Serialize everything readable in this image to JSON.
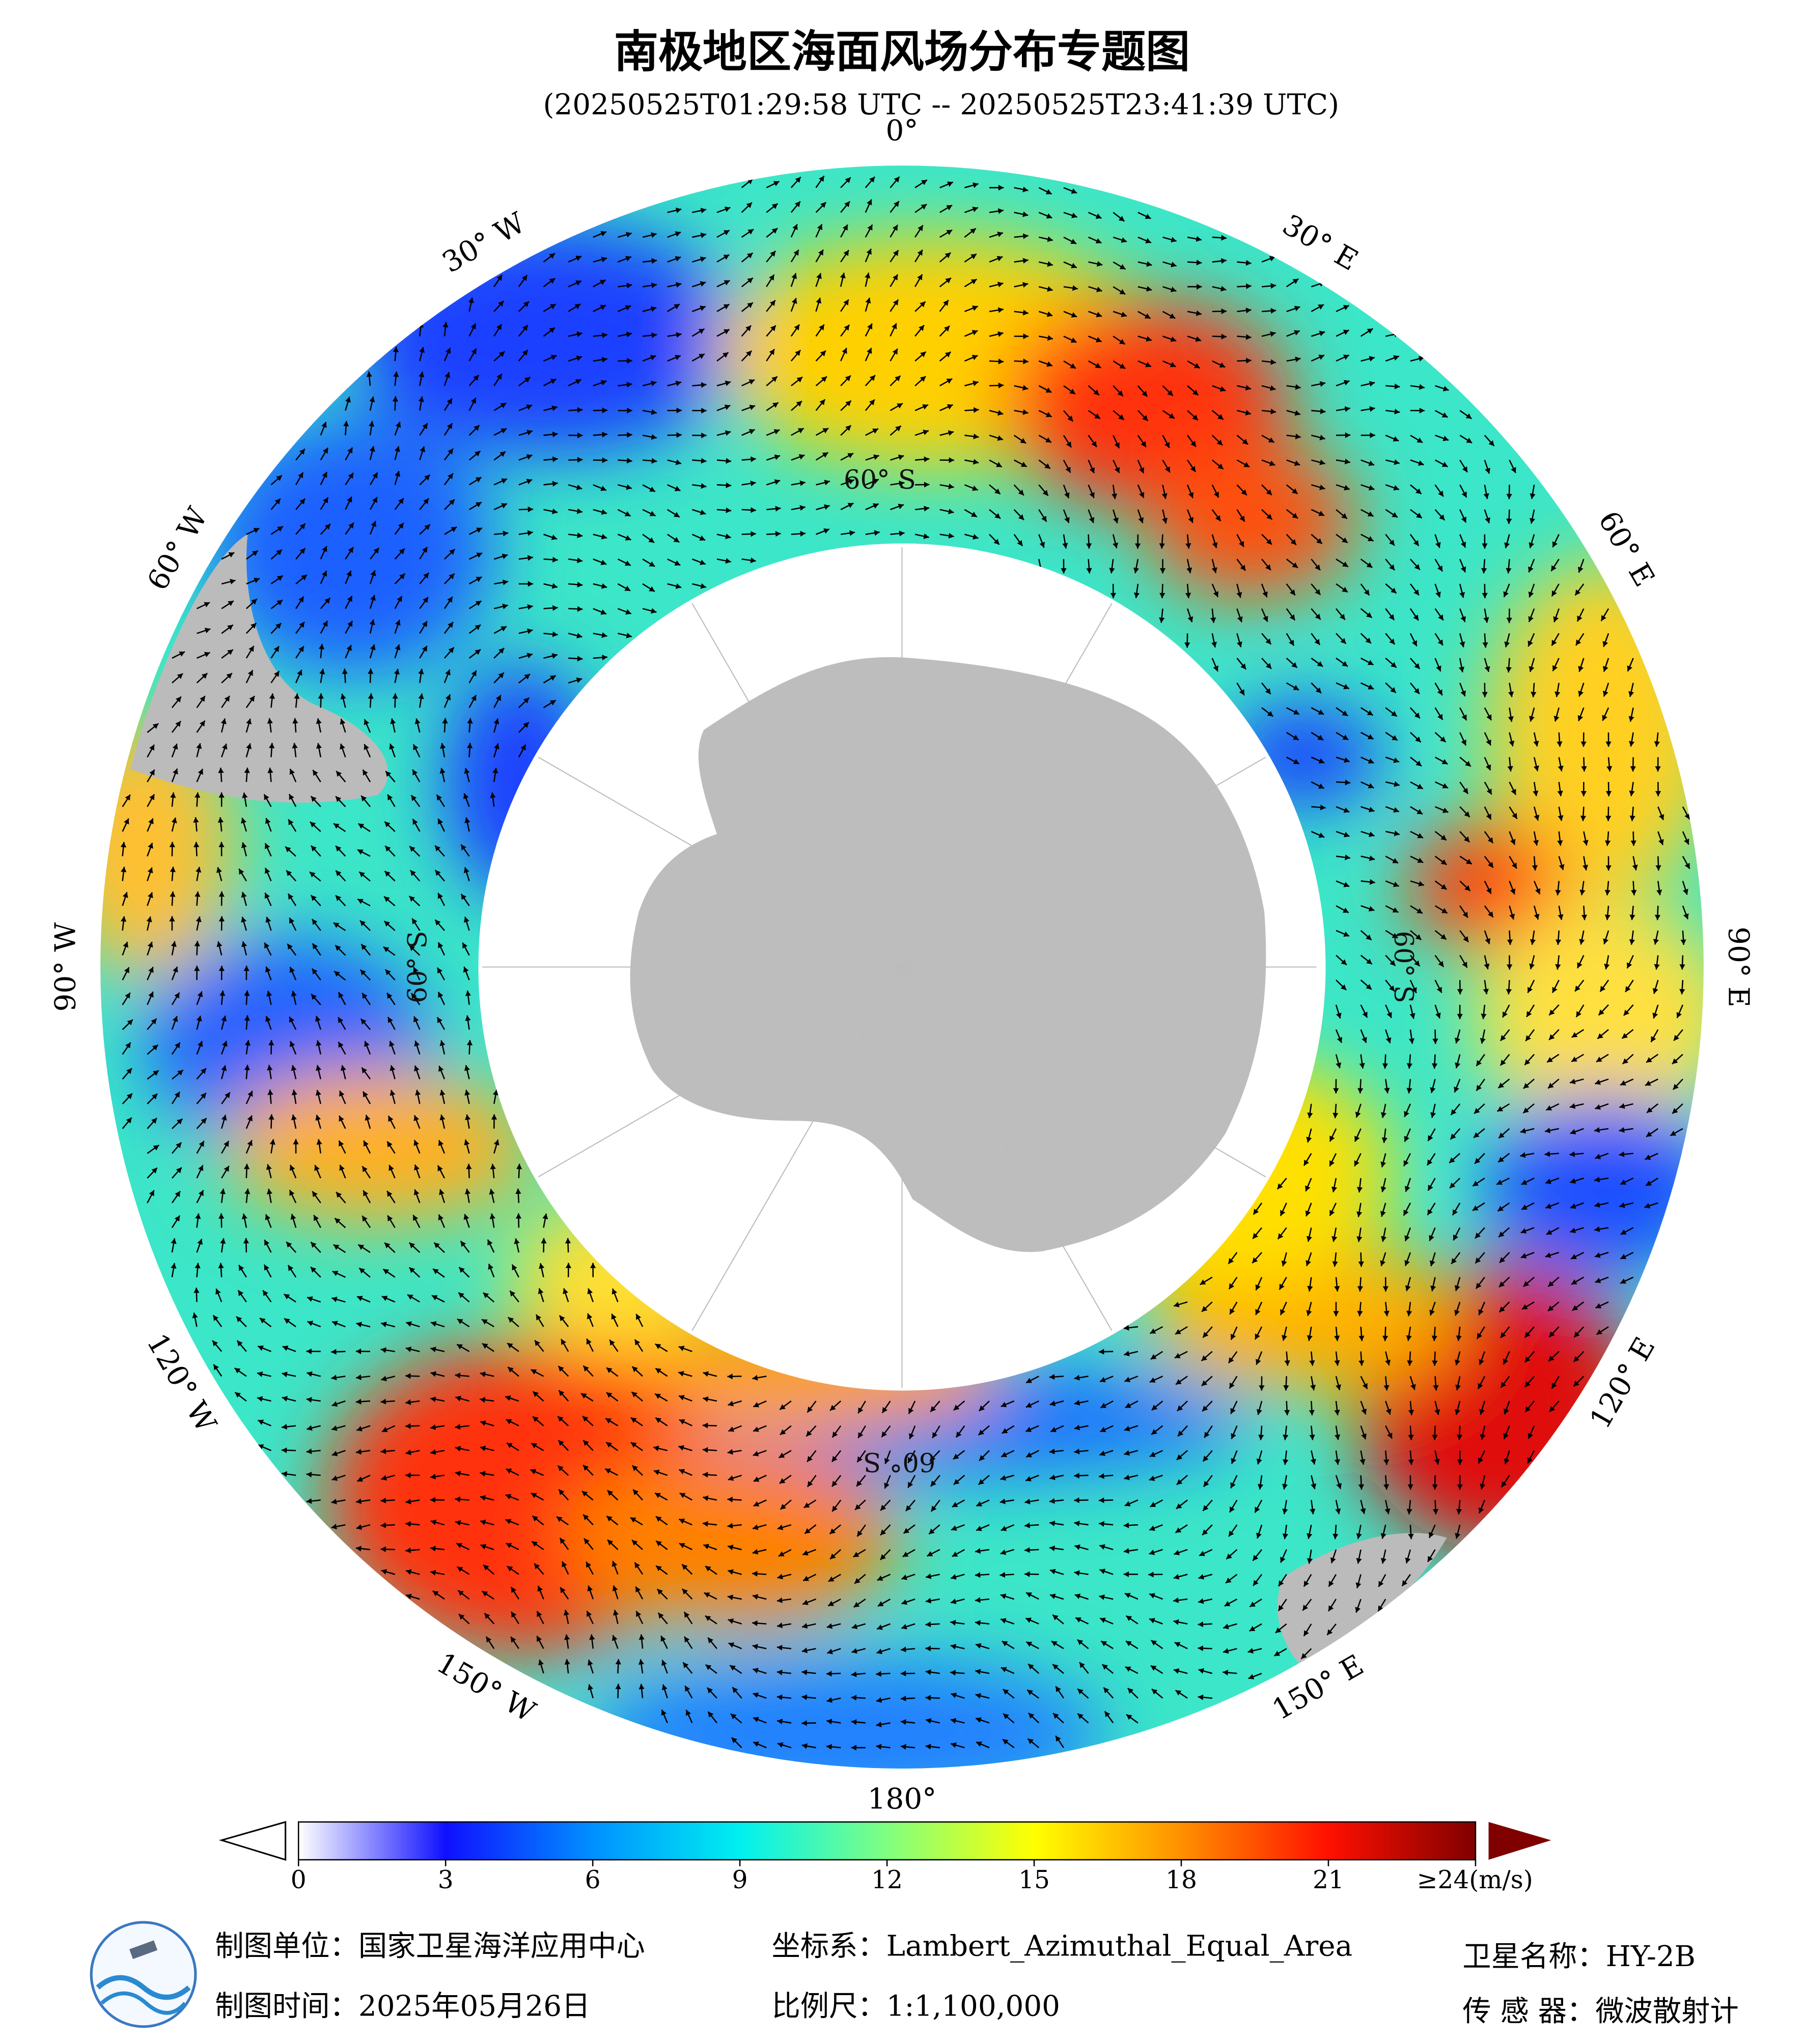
{
  "title": "南极地区海面风场分布专题图",
  "subtitle": "(20250525T01:29:58 UTC -- 20250525T23:41:39 UTC)",
  "map": {
    "longitude_labels": [
      "0°",
      "30° E",
      "60° E",
      "90° E",
      "120° E",
      "150° E",
      "180°",
      "150° W",
      "120° W",
      "90° W",
      "60° W",
      "30° W"
    ],
    "latitude_labels": [
      "60° S",
      "60° S",
      "60° S",
      "60° S"
    ]
  },
  "colorbar": {
    "lim": [
      0,
      24
    ],
    "ticks": [
      0,
      3,
      6,
      9,
      12,
      15,
      18,
      21,
      {
        "value": 24,
        "label": "≥24(m/s)"
      }
    ],
    "colors": [
      "#ffffff",
      "#1010ff",
      "#0090ff",
      "#00f0f0",
      "#80ff80",
      "#ffff00",
      "#ff9000",
      "#ff1000",
      "#800000"
    ]
  },
  "footer": {
    "unit": "制图单位：国家卫星海洋应用中心",
    "date": "制图时间：2025年05月26日",
    "crs": "坐标系：Lambert_Azimuthal_Equal_Area",
    "scale": "比例尺：1:1,100,000",
    "satellite": "卫星名称：HY-2B",
    "sensor": "传 感 器：微波散射计"
  }
}
